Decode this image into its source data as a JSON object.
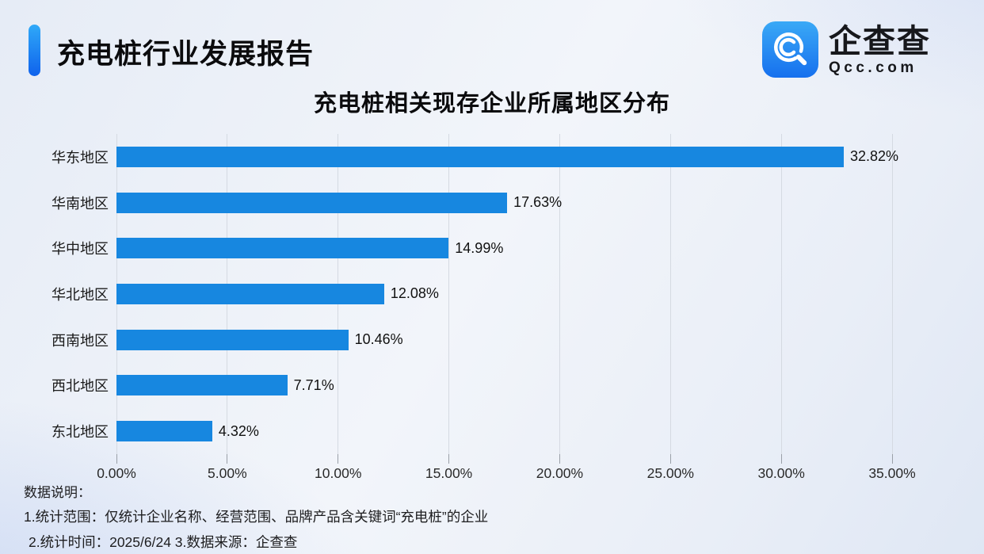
{
  "header": {
    "title": "充电桩行业发展报告",
    "logo": {
      "name": "企查查",
      "domain": "Qcc.com"
    }
  },
  "chart_data": {
    "type": "bar",
    "orientation": "horizontal",
    "title": "充电桩相关现存企业所属地区分布",
    "categories": [
      "华东地区",
      "华南地区",
      "华中地区",
      "华北地区",
      "西南地区",
      "西北地区",
      "东北地区"
    ],
    "values": [
      32.82,
      17.63,
      14.99,
      12.08,
      10.46,
      7.71,
      4.32
    ],
    "value_labels": [
      "32.82%",
      "17.63%",
      "14.99%",
      "12.08%",
      "10.46%",
      "7.71%",
      "4.32%"
    ],
    "x_ticks": [
      "0.00%",
      "5.00%",
      "10.00%",
      "15.00%",
      "20.00%",
      "25.00%",
      "30.00%",
      "35.00%"
    ],
    "xlim": [
      0,
      35
    ],
    "grid": true,
    "legend": false,
    "bar_color": "#1787e0"
  },
  "notes": {
    "heading": "数据说明：",
    "line1": "1.统计范围：仅统计企业名称、经营范围、品牌产品含关键词“充电桩”的企业",
    "line2": "2.统计时间：2025/6/24 3.数据来源：企查查"
  },
  "colors": {
    "accent_top": "#2fa9f8",
    "accent_bottom": "#0f62ec",
    "bar": "#1787e0",
    "logo_blue_top": "#3aa9f6",
    "logo_blue_bottom": "#1670ee",
    "gridline": "#d5dae2",
    "background": "#eef2f8"
  }
}
